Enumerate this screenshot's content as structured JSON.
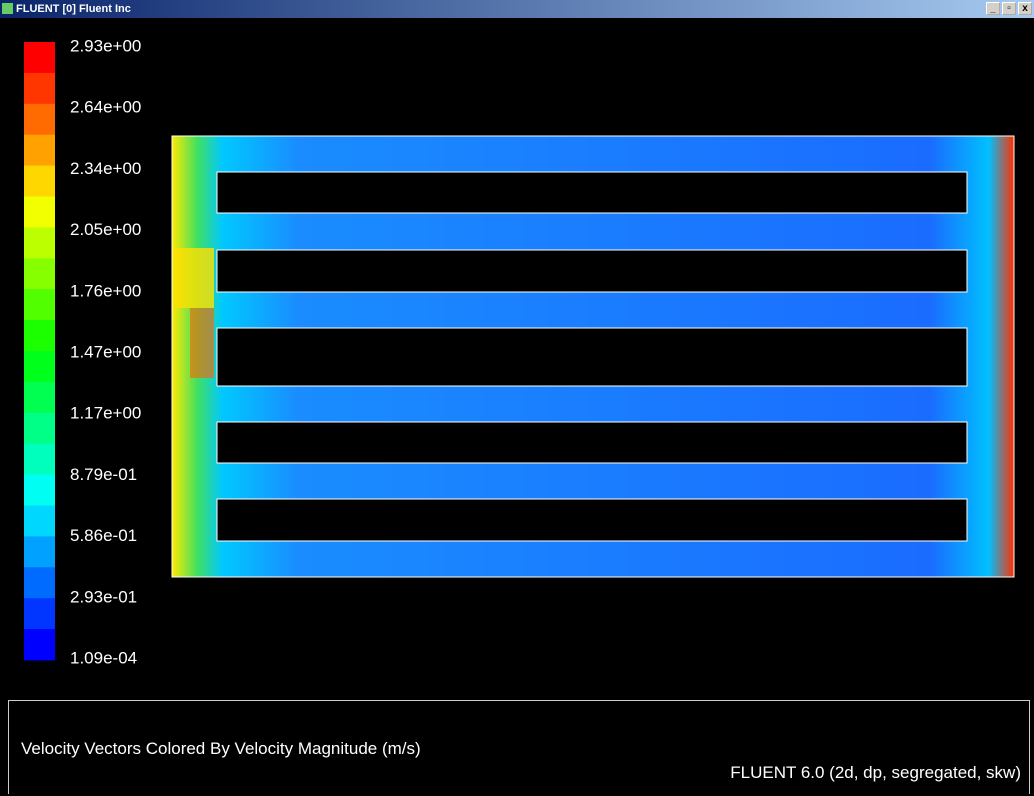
{
  "window": {
    "title": "FLUENT [0] Fluent Inc",
    "buttons": [
      "_",
      "▫",
      "x"
    ]
  },
  "colorbar": {
    "labels": [
      "2.93e+00",
      "2.64e+00",
      "2.34e+00",
      "2.05e+00",
      "1.76e+00",
      "1.47e+00",
      "1.17e+00",
      "8.79e-01",
      "5.86e-01",
      "2.93e-01",
      "1.09e-04"
    ]
  },
  "caption": "Velocity Vectors Colored By Velocity Magnitude (m/s)",
  "version": "FLUENT 6.0 (2d, dp, segregated, skw)"
}
